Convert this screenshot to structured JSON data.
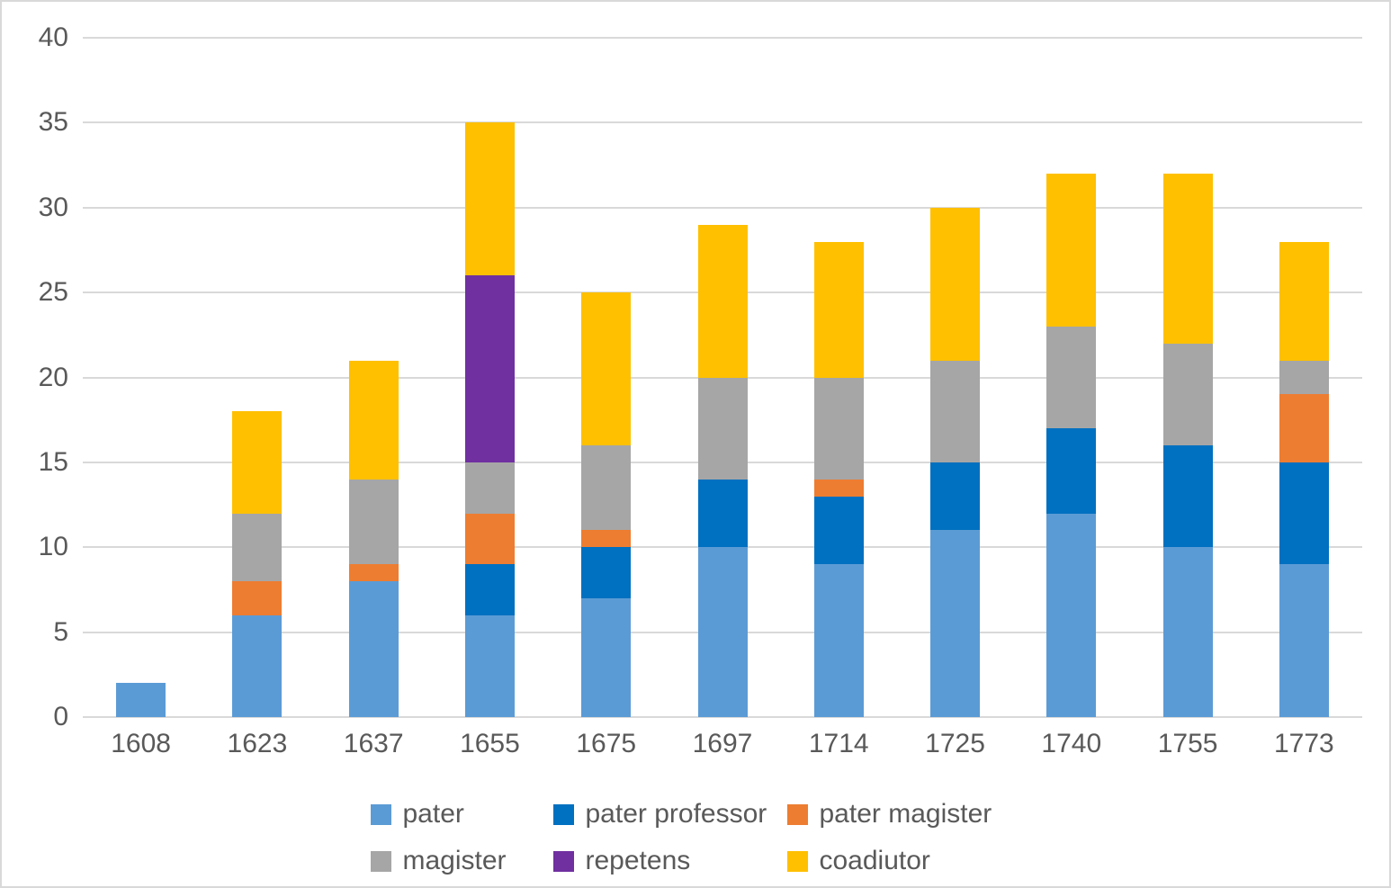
{
  "chart_data": {
    "type": "bar",
    "stacked": true,
    "title": "",
    "xlabel": "",
    "ylabel": "",
    "categories": [
      "1608",
      "1623",
      "1637",
      "1655",
      "1675",
      "1697",
      "1714",
      "1725",
      "1740",
      "1755",
      "1773"
    ],
    "series": [
      {
        "name": "pater",
        "color": "#5B9BD5",
        "values": [
          2,
          6,
          8,
          6,
          7,
          10,
          9,
          11,
          12,
          10,
          9
        ]
      },
      {
        "name": "pater professor",
        "color": "#0070C0",
        "values": [
          0,
          0,
          0,
          3,
          3,
          4,
          4,
          4,
          5,
          6,
          6
        ]
      },
      {
        "name": "pater magister",
        "color": "#ED7D31",
        "values": [
          0,
          2,
          1,
          3,
          1,
          0,
          1,
          0,
          0,
          0,
          4
        ]
      },
      {
        "name": "magister",
        "color": "#A6A6A6",
        "values": [
          0,
          4,
          5,
          3,
          5,
          6,
          6,
          6,
          6,
          6,
          2
        ]
      },
      {
        "name": "repetens",
        "color": "#7030A0",
        "values": [
          0,
          0,
          0,
          11,
          0,
          0,
          0,
          0,
          0,
          0,
          0
        ]
      },
      {
        "name": "coadiutor",
        "color": "#FFC000",
        "values": [
          0,
          6,
          7,
          9,
          9,
          9,
          8,
          9,
          9,
          10,
          7
        ]
      }
    ],
    "totals": [
      2,
      18,
      21,
      35,
      25,
      29,
      28,
      30,
      32,
      32,
      28
    ],
    "ylim": [
      0,
      40
    ],
    "ytick_step": 5,
    "y_tick_labels": [
      "0",
      "5",
      "10",
      "15",
      "20",
      "25",
      "30",
      "35",
      "40"
    ],
    "grid": true,
    "legend_position": "bottom",
    "legend_rows": [
      [
        "pater",
        "pater professor",
        "pater magister"
      ],
      [
        "magister",
        "repetens",
        "coadiutor"
      ]
    ]
  },
  "style_colors": {
    "gridline": "#d9d9d9",
    "axis_text": "#595959",
    "background": "#ffffff",
    "border": "#d9d9d9"
  }
}
